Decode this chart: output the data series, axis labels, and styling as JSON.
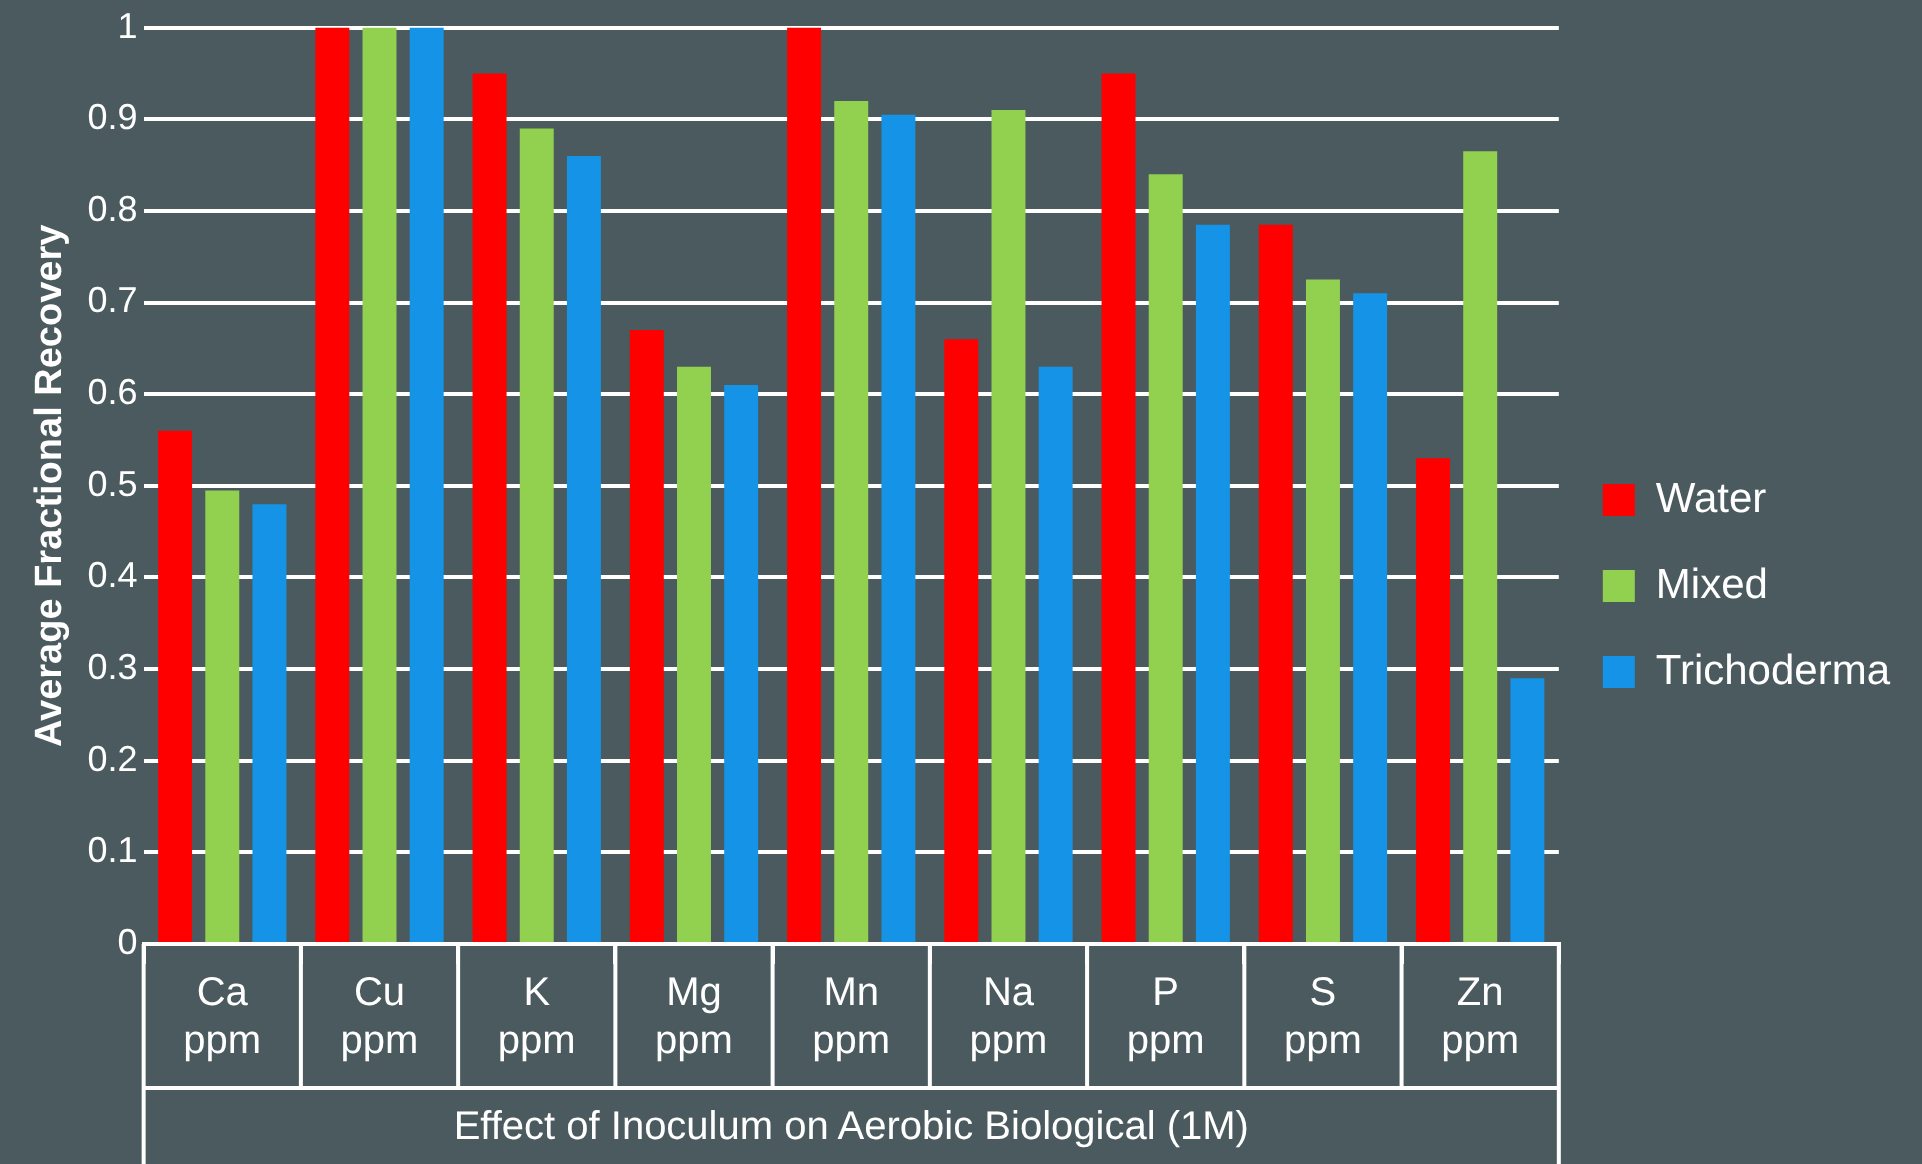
{
  "chart_data": {
    "type": "bar",
    "xlabel": "Effect of Inoculum on Aerobic Biological (1M)",
    "ylabel": "Average Fractional Recovery",
    "categories": [
      "Ca ppm",
      "Cu ppm",
      "K ppm",
      "Mg ppm",
      "Mn ppm",
      "Na ppm",
      "P ppm",
      "S ppm",
      "Zn ppm"
    ],
    "series": [
      {
        "name": "Water",
        "color": "#ff0000",
        "values": [
          0.56,
          1,
          0.95,
          0.67,
          1,
          0.66,
          0.95,
          0.785,
          0.53
        ]
      },
      {
        "name": "Mixed",
        "color": "#92d050",
        "values": [
          0.495,
          1,
          0.89,
          0.63,
          0.92,
          0.91,
          0.84,
          0.725,
          0.865
        ]
      },
      {
        "name": "Trichoderma",
        "color": "#1593e6",
        "values": [
          0.48,
          1,
          0.86,
          0.61,
          0.905,
          0.63,
          0.785,
          0.71,
          0.29
        ]
      }
    ],
    "ylim": [
      0,
      1
    ],
    "yticks": [
      0,
      0.1,
      0.2,
      0.3,
      0.4,
      0.5,
      0.6,
      0.7,
      0.8,
      0.9,
      1
    ],
    "grid": "y",
    "legend": "right"
  }
}
